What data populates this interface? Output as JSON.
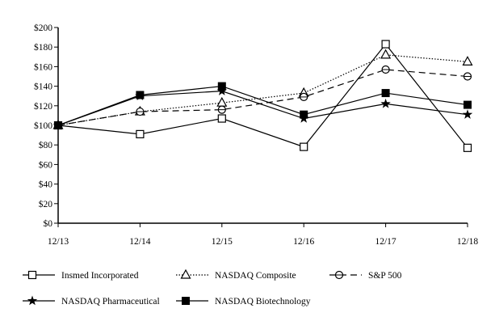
{
  "chart_data": {
    "type": "line",
    "categories": [
      "12/13",
      "12/14",
      "12/15",
      "12/16",
      "12/17",
      "12/18"
    ],
    "ylim": [
      0,
      200
    ],
    "yticks": [
      "$0",
      "$20",
      "$40",
      "$60",
      "$80",
      "$100",
      "$120",
      "$140",
      "$160",
      "$180",
      "$200"
    ],
    "grid": false,
    "legend_placement": "bottom",
    "series": [
      {
        "name": "Insmed Incorporated",
        "marker": "open-square",
        "dash": "solid",
        "values": [
          100,
          91,
          107,
          78,
          183,
          77
        ]
      },
      {
        "name": "NASDAQ Composite",
        "marker": "open-triangle",
        "dash": "dotted",
        "values": [
          100,
          114,
          123,
          133,
          172,
          165
        ]
      },
      {
        "name": "S&P 500",
        "marker": "open-circle",
        "dash": "dashed",
        "values": [
          100,
          114,
          116,
          129,
          157,
          150
        ]
      },
      {
        "name": "NASDAQ Pharmaceutical",
        "marker": "star",
        "dash": "solid",
        "values": [
          100,
          130,
          135,
          107,
          122,
          111
        ]
      },
      {
        "name": "NASDAQ Biotechnology",
        "marker": "filled-square",
        "dash": "solid",
        "values": [
          100,
          131,
          140,
          111,
          133,
          121
        ]
      }
    ]
  }
}
